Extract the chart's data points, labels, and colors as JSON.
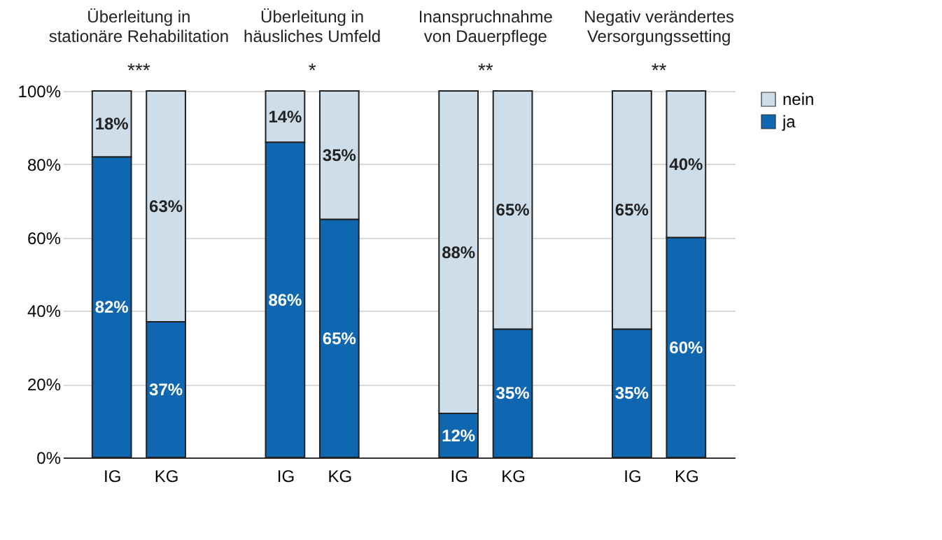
{
  "chart_data": {
    "type": "bar",
    "stacked": true,
    "categories": [
      "IG",
      "KG",
      "IG",
      "KG",
      "IG",
      "KG",
      "IG",
      "KG"
    ],
    "series": [
      {
        "name": "ja",
        "color": "#0f67b1",
        "values": [
          82,
          37,
          86,
          65,
          12,
          35,
          35,
          60
        ],
        "value_labels": [
          "82%",
          "37%",
          "86%",
          "65%",
          "12%",
          "35%",
          "35%",
          "60%"
        ]
      },
      {
        "name": "nein",
        "color": "#cddde9",
        "values": [
          18,
          63,
          14,
          35,
          88,
          65,
          65,
          40
        ],
        "value_labels": [
          "18%",
          "63%",
          "14%",
          "35%",
          "88%",
          "65%",
          "65%",
          "40%"
        ]
      }
    ],
    "ylim": [
      0,
      100
    ],
    "yticks": [
      {
        "value": 0,
        "label": "0%"
      },
      {
        "value": 20,
        "label": "20%"
      },
      {
        "value": 40,
        "label": "40%"
      },
      {
        "value": 60,
        "label": "60%"
      },
      {
        "value": 80,
        "label": "80%"
      },
      {
        "value": 100,
        "label": "100%"
      }
    ],
    "grid": "y",
    "legend": "right",
    "annotations": [
      "Überleitung in\nstationäre Rehabilitation",
      "Überleitung in\nhäusliches Umfeld",
      "Inanspruchnahme\nvon Dauerpflege",
      "Negativ verändertes\nVersorgungssetting",
      "***",
      "*",
      "**",
      "**"
    ]
  }
}
